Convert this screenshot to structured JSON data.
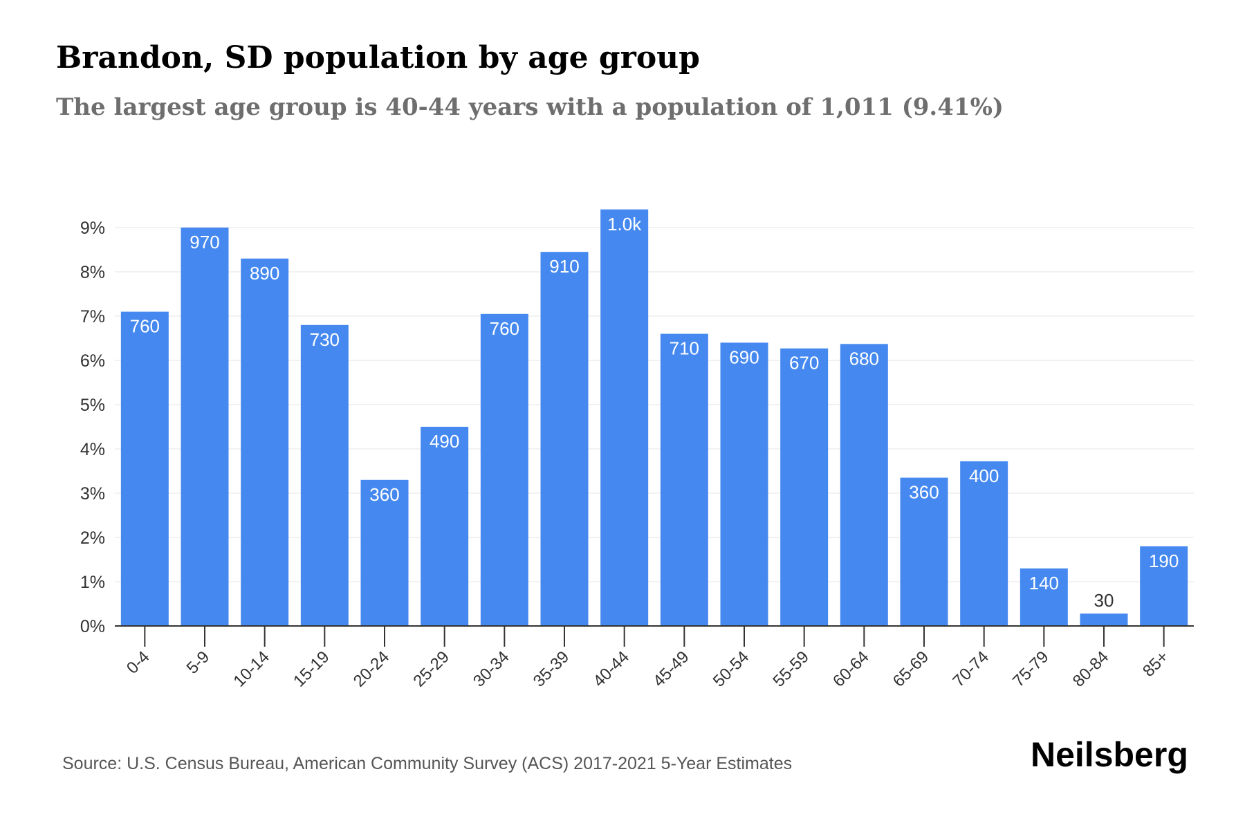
{
  "title": "Brandon, SD population by age group",
  "subtitle": "The largest age group is 40-44 years with a population of 1,011 (9.41%)",
  "source": "Source: U.S. Census Bureau, American Community Survey (ACS) 2017-2021 5-Year Estimates",
  "brand": "Neilsberg",
  "colors": {
    "bar": "#4589F0",
    "label_inside": "#ffffff",
    "label_outside": "#333333",
    "grid": "#eeeeee",
    "axis": "#333333"
  },
  "chart_data": {
    "type": "bar",
    "title": "Brandon, SD population by age group",
    "xlabel": "",
    "ylabel": "",
    "categories": [
      "0-4",
      "5-9",
      "10-14",
      "15-19",
      "20-24",
      "25-29",
      "30-34",
      "35-39",
      "40-44",
      "45-49",
      "50-54",
      "55-59",
      "60-64",
      "65-69",
      "70-74",
      "75-79",
      "80-84",
      "85+"
    ],
    "values": [
      7.1,
      9.0,
      8.3,
      6.8,
      3.3,
      4.5,
      7.05,
      8.45,
      9.41,
      6.6,
      6.4,
      6.27,
      6.37,
      3.35,
      3.72,
      1.3,
      0.28,
      1.8
    ],
    "value_unit": "%",
    "data_labels": [
      "760",
      "970",
      "890",
      "730",
      "360",
      "490",
      "760",
      "910",
      "1.0k",
      "710",
      "690",
      "670",
      "680",
      "360",
      "400",
      "140",
      "30",
      "190"
    ],
    "ylim": [
      0,
      9
    ],
    "yticks": [
      0,
      1,
      2,
      3,
      4,
      5,
      6,
      7,
      8,
      9
    ],
    "ytick_labels": [
      "0%",
      "1%",
      "2%",
      "3%",
      "4%",
      "5%",
      "6%",
      "7%",
      "8%",
      "9%"
    ],
    "grid": true,
    "legend": "none"
  }
}
